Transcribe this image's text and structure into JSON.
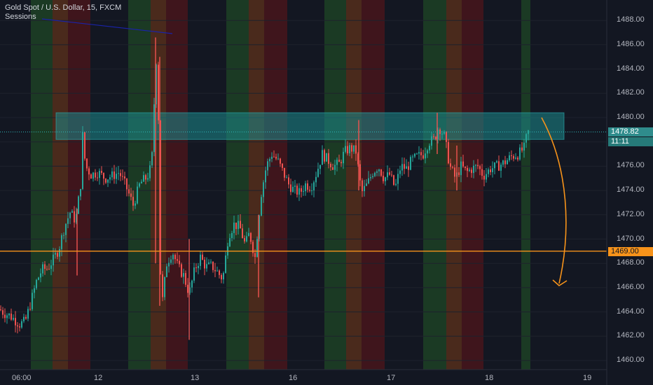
{
  "header": {
    "symbol_title": "Gold Spot / U.S. Dollar, 15, FXCM",
    "indicator_label": "Sessions"
  },
  "colors": {
    "background": "#131722",
    "up_candle": "#26a69a",
    "down_candle": "#ef5350",
    "session_green": "#1b3a24",
    "session_orange": "#4a2a1c",
    "session_red": "#3f151c",
    "resistance_zone": "#1b8a8c",
    "support_line": "#f7931a",
    "forecast_arrow": "#f7931a",
    "trend_line": "#1a23a8",
    "axis_text": "#b2b5be"
  },
  "price_axis": {
    "ticks": [
      "1488.00",
      "1486.00",
      "1484.00",
      "1482.00",
      "1480.00",
      "1478.00",
      "1476.00",
      "1474.00",
      "1472.00",
      "1470.00",
      "1468.00",
      "1466.00",
      "1464.00",
      "1462.00",
      "1460.00"
    ],
    "partial_tick": "1"
  },
  "time_axis": {
    "ticks": [
      "06:00",
      "12",
      "13",
      "16",
      "17",
      "18",
      "19"
    ]
  },
  "price_tags": {
    "last_price": "1478.82",
    "countdown": "11:11",
    "support_price": "1469.00"
  },
  "chart_data": {
    "type": "candlestick",
    "symbol": "Gold Spot / U.S. Dollar",
    "interval": "15",
    "source": "FXCM",
    "ylim": [
      1459.5,
      1489.6
    ],
    "last_price": 1478.82,
    "support_level": 1469.0,
    "resistance_zone": [
      1478.2,
      1480.4
    ],
    "forecast": "down",
    "path_points": [
      [
        0,
        1464.2
      ],
      [
        6,
        1463.9
      ],
      [
        14,
        1463.7
      ],
      [
        20,
        1463.4
      ],
      [
        28,
        1463.0
      ],
      [
        36,
        1463.2
      ],
      [
        44,
        1464.8
      ],
      [
        52,
        1466.5
      ],
      [
        60,
        1467.5
      ],
      [
        68,
        1467.6
      ],
      [
        76,
        1468.3
      ],
      [
        84,
        1469.2
      ],
      [
        92,
        1471.0
      ],
      [
        100,
        1472.2
      ],
      [
        108,
        1471.5
      ],
      [
        115,
        1474.5
      ],
      [
        118,
        1478.5
      ],
      [
        122,
        1476.0
      ],
      [
        130,
        1475.3
      ],
      [
        140,
        1475.5
      ],
      [
        150,
        1475.0
      ],
      [
        160,
        1475.2
      ],
      [
        170,
        1475.5
      ],
      [
        180,
        1474.3
      ],
      [
        190,
        1472.8
      ],
      [
        200,
        1474.6
      ],
      [
        210,
        1475.1
      ],
      [
        216,
        1476.0
      ],
      [
        219,
        1478.6
      ],
      [
        222,
        1486.3
      ],
      [
        226,
        1480.0
      ],
      [
        228,
        1468.0
      ],
      [
        232,
        1465.0
      ],
      [
        238,
        1468.0
      ],
      [
        246,
        1469.0
      ],
      [
        254,
        1467.7
      ],
      [
        262,
        1467.0
      ],
      [
        270,
        1465.5
      ],
      [
        278,
        1467.5
      ],
      [
        286,
        1468.5
      ],
      [
        294,
        1467.7
      ],
      [
        302,
        1467.8
      ],
      [
        310,
        1467.3
      ],
      [
        318,
        1466.7
      ],
      [
        326,
        1470.3
      ],
      [
        334,
        1471.2
      ],
      [
        342,
        1471.0
      ],
      [
        350,
        1469.5
      ],
      [
        356,
        1470.5
      ],
      [
        364,
        1468.5
      ],
      [
        372,
        1473.5
      ],
      [
        380,
        1476.0
      ],
      [
        388,
        1477.0
      ],
      [
        396,
        1476.5
      ],
      [
        404,
        1475.5
      ],
      [
        412,
        1474.5
      ],
      [
        420,
        1474.0
      ],
      [
        428,
        1473.8
      ],
      [
        436,
        1474.5
      ],
      [
        444,
        1474.3
      ],
      [
        452,
        1475.5
      ],
      [
        460,
        1477.0
      ],
      [
        468,
        1476.5
      ],
      [
        476,
        1476.0
      ],
      [
        484,
        1476.2
      ],
      [
        492,
        1477.2
      ],
      [
        500,
        1477.5
      ],
      [
        508,
        1477.2
      ],
      [
        516,
        1473.8
      ],
      [
        524,
        1474.5
      ],
      [
        532,
        1475.5
      ],
      [
        540,
        1476.0
      ],
      [
        548,
        1475.0
      ],
      [
        556,
        1475.3
      ],
      [
        564,
        1474.2
      ],
      [
        572,
        1476.0
      ],
      [
        580,
        1475.8
      ],
      [
        588,
        1476.5
      ],
      [
        596,
        1476.8
      ],
      [
        604,
        1477.0
      ],
      [
        612,
        1478.0
      ],
      [
        620,
        1478.2
      ],
      [
        626,
        1479.3
      ],
      [
        634,
        1478.5
      ],
      [
        642,
        1476.0
      ],
      [
        650,
        1475.0
      ],
      [
        658,
        1476.0
      ],
      [
        666,
        1475.5
      ],
      [
        674,
        1475.8
      ],
      [
        682,
        1476.0
      ],
      [
        690,
        1475.2
      ],
      [
        700,
        1475.8
      ],
      [
        710,
        1476.0
      ],
      [
        720,
        1476.3
      ],
      [
        730,
        1476.8
      ],
      [
        740,
        1477.0
      ],
      [
        748,
        1477.5
      ],
      [
        753,
        1478.8
      ]
    ],
    "spikes": [
      {
        "x": 222,
        "lo": 1468.0,
        "hi": 1486.6
      },
      {
        "x": 228,
        "lo": 1464.5,
        "hi": 1485.0
      },
      {
        "x": 270,
        "lo": 1461.7,
        "hi": 1470.0
      },
      {
        "x": 110,
        "lo": 1467.0,
        "hi": 1472.5
      },
      {
        "x": 369,
        "lo": 1465.2,
        "hi": 1472.0
      },
      {
        "x": 512,
        "lo": 1474.0,
        "hi": 1479.8
      },
      {
        "x": 624,
        "lo": 1477.0,
        "hi": 1480.4
      },
      {
        "x": 652,
        "lo": 1474.0,
        "hi": 1477.7
      }
    ]
  }
}
